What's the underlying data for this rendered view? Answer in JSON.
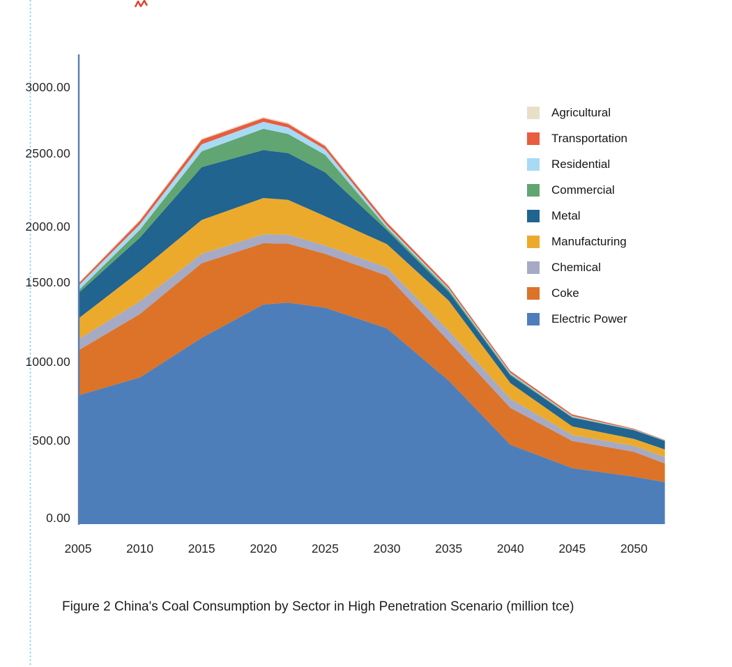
{
  "chart_data": {
    "type": "area",
    "stacked": true,
    "caption": "Figure 2 China's Coal Consumption by Sector in High Penetration Scenario (million tce)",
    "unit": "million tce",
    "grid": false,
    "legend_position": "right",
    "xlabel": "",
    "ylabel": "",
    "ylim": [
      0,
      3200
    ],
    "x": [
      2005,
      2010,
      2015,
      2020,
      2022,
      2025,
      2030,
      2035,
      2040,
      2045,
      2050,
      2052.5
    ],
    "x_ticks": [
      2005,
      2010,
      2015,
      2020,
      2025,
      2030,
      2035,
      2040,
      2045,
      2050
    ],
    "x_tick_labels": [
      "2005",
      "2010",
      "2015",
      "2020",
      "2025",
      "2030",
      "2035",
      "2040",
      "2045",
      "2050"
    ],
    "y_tick_values": [
      0,
      500,
      1000,
      1500,
      2000,
      2500,
      3000
    ],
    "y_tick_labels": [
      "0.00",
      "500.00",
      "1000.00",
      "1500.00",
      "2000.00",
      "2500.00",
      "3000.00"
    ],
    "series": [
      {
        "name": "Electric Power",
        "color": "#4e7eba",
        "values": [
          785,
          900,
          1150,
          1360,
          1372,
          1340,
          1210,
          880,
          470,
          320,
          265,
          230
        ]
      },
      {
        "name": "Coke",
        "color": "#dc7328",
        "values": [
          285,
          400,
          520,
          490,
          475,
          415,
          350,
          250,
          235,
          175,
          160,
          120
        ]
      },
      {
        "name": "Chemical",
        "color": "#a6aac4",
        "values": [
          70,
          80,
          85,
          80,
          80,
          75,
          72,
          65,
          58,
          38,
          38,
          40
        ]
      },
      {
        "name": "Manufacturing",
        "color": "#ecaa2d",
        "values": [
          130,
          220,
          290,
          265,
          255,
          240,
          210,
          190,
          100,
          55,
          45,
          50
        ]
      },
      {
        "name": "Metal",
        "color": "#20648f",
        "values": [
          160,
          300,
          360,
          330,
          320,
          300,
          125,
          55,
          50,
          55,
          55,
          55
        ]
      },
      {
        "name": "Commercial",
        "color": "#61a572",
        "values": [
          16,
          70,
          110,
          160,
          145,
          120,
          22,
          12,
          8,
          5,
          2,
          1
        ]
      },
      {
        "name": "Residential",
        "color": "#a8daf4",
        "values": [
          30,
          45,
          53,
          53,
          48,
          40,
          18,
          10,
          8,
          6,
          3,
          2
        ]
      },
      {
        "name": "Transportation",
        "color": "#e85c41",
        "values": [
          13,
          24,
          35,
          28,
          27,
          25,
          20,
          14,
          12,
          10,
          5,
          3
        ]
      },
      {
        "name": "Agricultural",
        "color": "#e7dfc8",
        "values": [
          7,
          8,
          9,
          10,
          10,
          10,
          4,
          3,
          2,
          2,
          1,
          1
        ]
      }
    ]
  },
  "decorations": {
    "dotted_guide_color": "#7fd0f2",
    "axis_line_color": "#5b7db1",
    "red_mark_color": "#e23c28"
  }
}
